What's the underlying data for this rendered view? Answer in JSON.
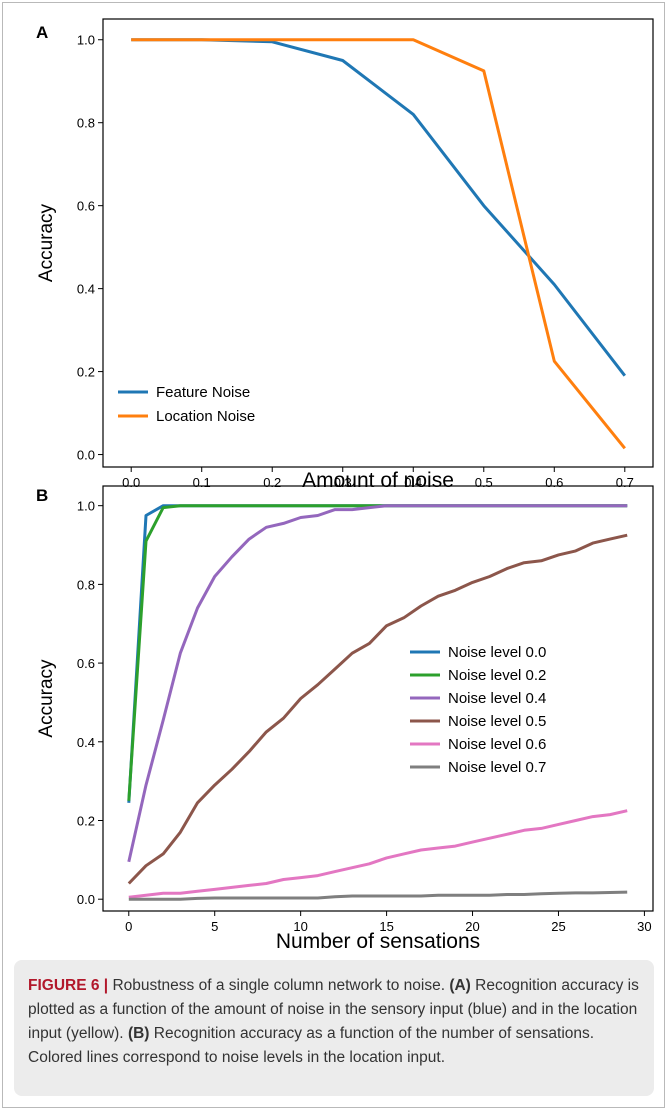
{
  "chart_data": [
    {
      "panel": "A",
      "type": "line",
      "xlabel": "Amount of noise",
      "ylabel": "Accuracy",
      "xlim": [
        -0.04,
        0.74
      ],
      "ylim": [
        -0.03,
        1.05
      ],
      "xticks": [
        "0.0",
        "0.1",
        "0.2",
        "0.3",
        "0.4",
        "0.5",
        "0.6",
        "0.7"
      ],
      "yticks": [
        "0.0",
        "0.2",
        "0.4",
        "0.6",
        "0.8",
        "1.0"
      ],
      "legend_position": "bottom-left",
      "grid": false,
      "x": [
        0.0,
        0.1,
        0.2,
        0.3,
        0.4,
        0.5,
        0.6,
        0.7
      ],
      "series": [
        {
          "name": "Feature Noise",
          "color": "#1f77b4",
          "values": [
            1.0,
            1.0,
            0.995,
            0.95,
            0.82,
            0.6,
            0.41,
            0.19
          ]
        },
        {
          "name": "Location Noise",
          "color": "#ff7f0e",
          "values": [
            1.0,
            1.0,
            1.0,
            1.0,
            1.0,
            0.925,
            0.225,
            0.015
          ]
        }
      ]
    },
    {
      "panel": "B",
      "type": "line",
      "xlabel": "Number of sensations",
      "ylabel": "Accuracy",
      "xlim": [
        -1.5,
        30.5
      ],
      "ylim": [
        -0.03,
        1.05
      ],
      "xticks": [
        "0",
        "5",
        "10",
        "15",
        "20",
        "25",
        "30"
      ],
      "yticks": [
        "0.0",
        "0.2",
        "0.4",
        "0.6",
        "0.8",
        "1.0"
      ],
      "legend_position": "center-right",
      "grid": false,
      "x": [
        0,
        1,
        2,
        3,
        4,
        5,
        6,
        7,
        8,
        9,
        10,
        11,
        12,
        13,
        14,
        15,
        16,
        17,
        18,
        19,
        20,
        21,
        22,
        23,
        24,
        25,
        26,
        27,
        28,
        29
      ],
      "series": [
        {
          "name": "Noise level 0.0",
          "color": "#1f77b4",
          "values": [
            0.245,
            0.975,
            1.0,
            1.0,
            1.0,
            1.0,
            1.0,
            1.0,
            1.0,
            1.0,
            1.0,
            1.0,
            1.0,
            1.0,
            1.0,
            1.0,
            1.0,
            1.0,
            1.0,
            1.0,
            1.0,
            1.0,
            1.0,
            1.0,
            1.0,
            1.0,
            1.0,
            1.0,
            1.0,
            1.0
          ]
        },
        {
          "name": "Noise level 0.2",
          "color": "#2ca02c",
          "values": [
            0.25,
            0.91,
            0.995,
            1.0,
            1.0,
            1.0,
            1.0,
            1.0,
            1.0,
            1.0,
            1.0,
            1.0,
            1.0,
            1.0,
            1.0,
            1.0,
            1.0,
            1.0,
            1.0,
            1.0,
            1.0,
            1.0,
            1.0,
            1.0,
            1.0,
            1.0,
            1.0,
            1.0,
            1.0,
            1.0
          ]
        },
        {
          "name": "Noise level 0.4",
          "color": "#9467bd",
          "values": [
            0.095,
            0.29,
            0.455,
            0.625,
            0.74,
            0.82,
            0.87,
            0.915,
            0.945,
            0.955,
            0.97,
            0.975,
            0.99,
            0.99,
            0.995,
            1.0,
            1.0,
            1.0,
            1.0,
            1.0,
            1.0,
            1.0,
            1.0,
            1.0,
            1.0,
            1.0,
            1.0,
            1.0,
            1.0,
            1.0
          ]
        },
        {
          "name": "Noise level 0.5",
          "color": "#8c564b",
          "values": [
            0.04,
            0.085,
            0.115,
            0.17,
            0.245,
            0.29,
            0.33,
            0.375,
            0.425,
            0.46,
            0.51,
            0.545,
            0.585,
            0.625,
            0.65,
            0.695,
            0.715,
            0.745,
            0.77,
            0.785,
            0.805,
            0.82,
            0.84,
            0.855,
            0.86,
            0.875,
            0.885,
            0.905,
            0.915,
            0.925
          ]
        },
        {
          "name": "Noise level 0.6",
          "color": "#e377c2",
          "values": [
            0.005,
            0.01,
            0.015,
            0.015,
            0.02,
            0.025,
            0.03,
            0.035,
            0.04,
            0.05,
            0.055,
            0.06,
            0.07,
            0.08,
            0.09,
            0.105,
            0.115,
            0.125,
            0.13,
            0.135,
            0.145,
            0.155,
            0.165,
            0.175,
            0.18,
            0.19,
            0.2,
            0.21,
            0.215,
            0.225
          ]
        },
        {
          "name": "Noise level 0.7",
          "color": "#7f7f7f",
          "values": [
            0.0,
            0.0,
            0.0,
            0.0,
            0.002,
            0.003,
            0.003,
            0.003,
            0.003,
            0.003,
            0.003,
            0.003,
            0.006,
            0.008,
            0.008,
            0.008,
            0.008,
            0.008,
            0.01,
            0.01,
            0.01,
            0.01,
            0.012,
            0.012,
            0.014,
            0.015,
            0.016,
            0.016,
            0.017,
            0.018
          ]
        }
      ]
    }
  ],
  "caption": {
    "figure_label": "FIGURE 6 |",
    "text_1": " Robustness of a single column network to noise. ",
    "bold_a": "(A)",
    "text_2": " Recognition accuracy is plotted as a function of the amount of noise in the sensory input (blue) and in the location input (yellow). ",
    "bold_b": "(B)",
    "text_3": " Recognition accuracy as a function of the number of sensations. Colored lines correspond to noise levels in the location input."
  }
}
